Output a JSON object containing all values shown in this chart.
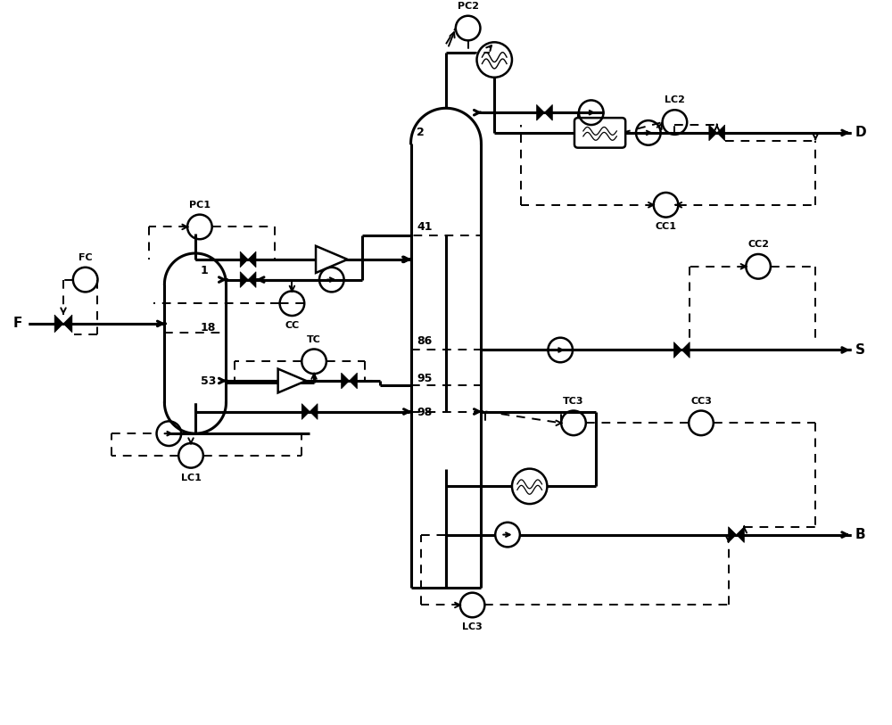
{
  "bg_color": "#ffffff",
  "lw_thick": 2.2,
  "lw_med": 1.8,
  "lw_thin": 1.4,
  "fig_width": 10.0,
  "fig_height": 8.13,
  "dpi": 100,
  "xlim": [
    0,
    10
  ],
  "ylim": [
    0,
    8.13
  ]
}
